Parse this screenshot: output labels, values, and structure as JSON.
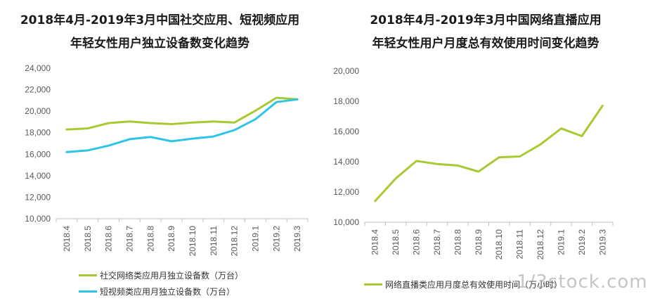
{
  "colors": {
    "green": "#a8c932",
    "cyan": "#2ec4e6",
    "axis": "#bfbfbf",
    "text": "#595959"
  },
  "watermark": "1/3stock.com",
  "chart_data": [
    {
      "type": "line",
      "title_line1": "2018年4月-2019年3月中国社交应用、短视频应用",
      "title_line2": "年轻女性用户独立设备数变化趋势",
      "categories": [
        "2018.4",
        "2018.5",
        "2018.6",
        "2018.7",
        "2018.8",
        "2018.9",
        "2018.10",
        "2018.11",
        "2018.12",
        "2019.1",
        "2019.2",
        "2019.3"
      ],
      "ylim": [
        10000,
        24000
      ],
      "yticks": [
        "10,000",
        "12,000",
        "14,000",
        "16,000",
        "18,000",
        "20,000",
        "22,000",
        "24,000"
      ],
      "yticks_values": [
        10000,
        12000,
        14000,
        16000,
        18000,
        20000,
        22000,
        24000
      ],
      "grid": false,
      "legend": "bottom",
      "series": [
        {
          "name": "社交网络类应用月独立设备数（万台）",
          "color": "#a8c932",
          "values": [
            18300,
            18400,
            18900,
            19050,
            18900,
            18800,
            18950,
            19050,
            18950,
            20050,
            21250,
            21100
          ]
        },
        {
          "name": "短视频类应用月独立设备数（万台）",
          "color": "#2ec4e6",
          "values": [
            16200,
            16350,
            16800,
            17400,
            17600,
            17200,
            17450,
            17650,
            18250,
            19250,
            20850,
            21100
          ]
        }
      ]
    },
    {
      "type": "line",
      "title_line1": "2018年4月-2019年3月中国网络直播应用",
      "title_line2": "年轻女性用户月度总有效使用时间变化趋势",
      "categories": [
        "2018.4",
        "2018.5",
        "2018.6",
        "2018.7",
        "2018.8",
        "2018.9",
        "2018.10",
        "2018.11",
        "2018.12",
        "2019.1",
        "2019.2",
        "2019.3"
      ],
      "ylim": [
        10000,
        20000
      ],
      "yticks": [
        "10,000",
        "12,000",
        "14,000",
        "16,000",
        "18,000",
        "20,000"
      ],
      "yticks_values": [
        10000,
        12000,
        14000,
        16000,
        18000,
        20000
      ],
      "grid": false,
      "legend": "bottom",
      "series": [
        {
          "name": "网络直播类应用月度总有效使用时间（万小时）",
          "color": "#a8c932",
          "values": [
            11400,
            12900,
            14050,
            13850,
            13750,
            13350,
            14300,
            14350,
            15150,
            16200,
            15700,
            17700
          ]
        }
      ]
    }
  ]
}
